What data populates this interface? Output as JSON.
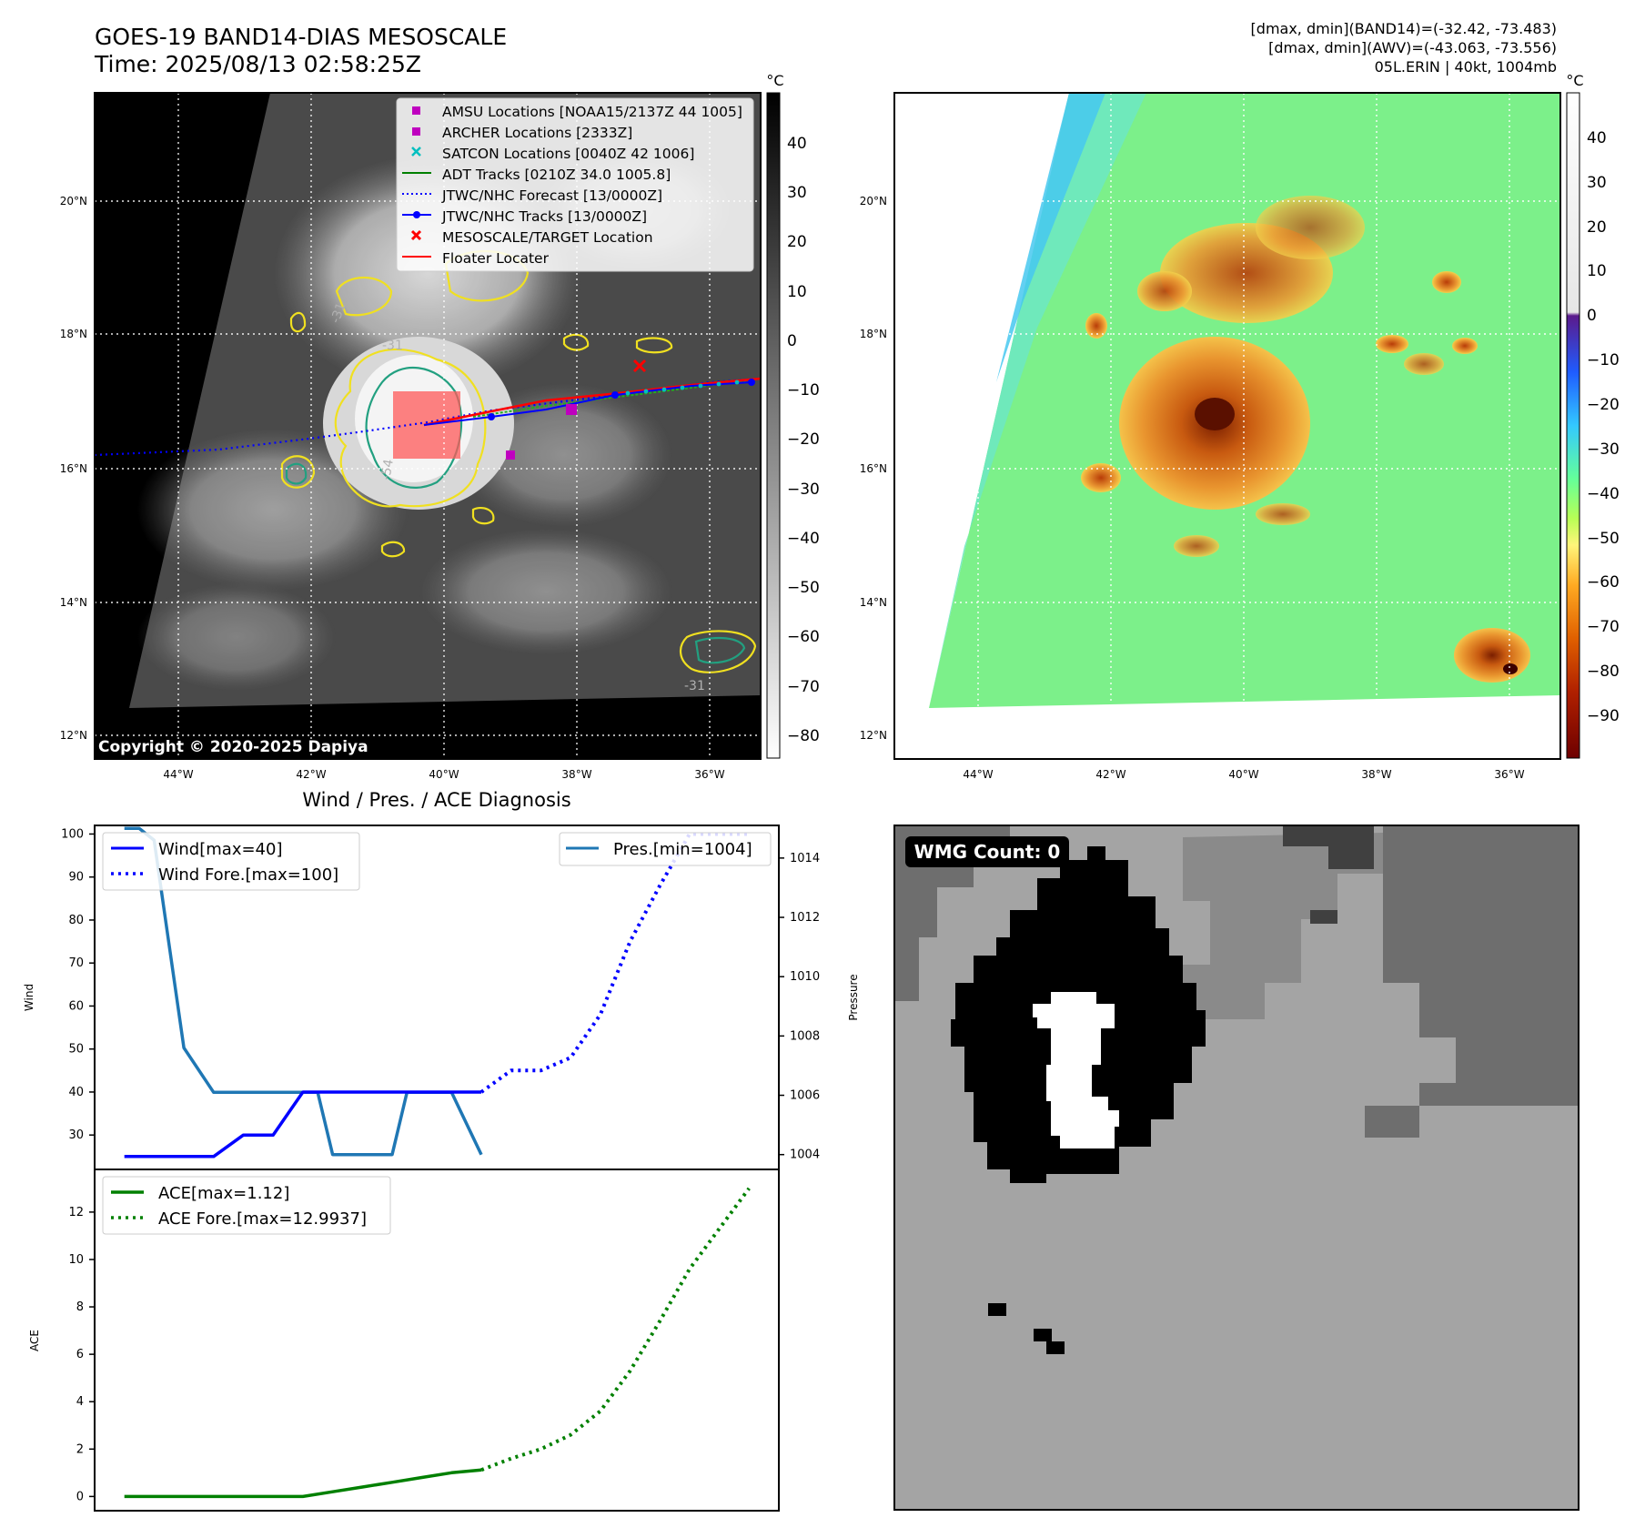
{
  "header": {
    "title": "GOES-19 BAND14-DIAS MESOSCALE",
    "time": "Time: 2025/08/13 02:58:25Z",
    "dmax_band14": "[dmax, dmin](BAND14)=(-32.42, -73.483)",
    "dmax_awv": "[dmax, dmin](AWV)=(-43.063, -73.556)",
    "storm": "05L.ERIN | 40kt, 1004mb"
  },
  "map": {
    "lat_labels": [
      "20°N",
      "18°N",
      "16°N",
      "14°N",
      "12°N"
    ],
    "lon_labels": [
      "44°W",
      "42°W",
      "40°W",
      "38°W",
      "36°W"
    ],
    "copyright": "Copyright © 2020-2025 Dapiya",
    "colorbar_unit": "°C",
    "gray_ticks": [
      "40",
      "30",
      "20",
      "10",
      "0",
      "−10",
      "−20",
      "−30",
      "−40",
      "−50",
      "−60",
      "−70",
      "−80"
    ],
    "color_ticks": [
      "40",
      "30",
      "20",
      "10",
      "0",
      "−10",
      "−20",
      "−30",
      "−40",
      "−50",
      "−60",
      "−70",
      "−80",
      "−90"
    ],
    "contour_labels": [
      "-31",
      "-54",
      "-31",
      "-31"
    ],
    "legend": [
      {
        "label": "AMSU Locations [NOAA15/2137Z 44 1005]",
        "symbol": "square",
        "color": "#bf00bf"
      },
      {
        "label": "ARCHER Locations [2333Z]",
        "symbol": "square",
        "color": "#bf00bf"
      },
      {
        "label": "SATCON Locations [0040Z 42 1006]",
        "symbol": "x",
        "color": "#00bfbf"
      },
      {
        "label": "ADT Tracks [0210Z 34.0 1005.8]",
        "symbol": "line",
        "color": "#008000"
      },
      {
        "label": "JTWC/NHC Forecast [13/0000Z]",
        "symbol": "dotted",
        "color": "#0000ff"
      },
      {
        "label": "JTWC/NHC Tracks [13/0000Z]",
        "symbol": "line-dot",
        "color": "#0000ff"
      },
      {
        "label": "MESOSCALE/TARGET Location",
        "symbol": "x",
        "color": "#ff0000"
      },
      {
        "label": "Floater Locater",
        "symbol": "line",
        "color": "#ff0000"
      }
    ]
  },
  "diagnosis": {
    "title": "Wind / Pres. / ACE Diagnosis",
    "wind_axis_label": "Wind",
    "pressure_axis_label": "Pressure",
    "ace_axis_label": "ACE",
    "wind_legend": "Wind[max=40]",
    "wind_fore_legend": "Wind Fore.[max=100]",
    "pres_legend": "Pres.[min=1004]",
    "ace_legend": "ACE[max=1.12]",
    "ace_fore_legend": "ACE Fore.[max=12.9937]"
  },
  "wmg": {
    "label": "WMG Count: 0"
  },
  "chart_data": [
    {
      "type": "line",
      "title": "Wind / Pres. / ACE Diagnosis",
      "ylabel": "Wind",
      "ylim": [
        22,
        102
      ],
      "yticks": [
        30,
        40,
        50,
        60,
        70,
        80,
        90,
        100
      ],
      "series": [
        {
          "name": "Wind[max=40]",
          "color": "#0000ff",
          "style": "solid",
          "x": [
            0,
            1,
            2,
            3,
            4,
            5,
            6,
            7,
            8,
            9,
            10,
            11,
            12
          ],
          "y": [
            25,
            25,
            25,
            25,
            30,
            30,
            40,
            40,
            40,
            40,
            40,
            40,
            40
          ]
        },
        {
          "name": "Wind Fore.[max=100]",
          "color": "#0000ff",
          "style": "dotted",
          "x": [
            12,
            13,
            14,
            15,
            16,
            17,
            18,
            19,
            20,
            21
          ],
          "y": [
            40,
            45,
            45,
            48,
            58,
            75,
            88,
            100,
            100,
            100
          ]
        }
      ]
    },
    {
      "type": "line",
      "ylabel": "Pressure",
      "ylim": [
        1003.5,
        1015.1
      ],
      "yticks": [
        1004,
        1006,
        1008,
        1010,
        1012,
        1014
      ],
      "series": [
        {
          "name": "Pres.[min=1004]",
          "color": "#1f77b4",
          "style": "solid",
          "x": [
            0,
            0.5,
            1,
            2,
            3,
            4,
            5,
            6,
            6.5,
            7,
            8,
            9,
            9.5,
            10,
            11,
            12
          ],
          "y": [
            1015,
            1015,
            1014.6,
            1007.6,
            1006.1,
            1006.1,
            1006.1,
            1006.1,
            1006.1,
            1004,
            1004,
            1004,
            1006.1,
            1006.1,
            1006.1,
            1004
          ]
        }
      ]
    },
    {
      "type": "line",
      "ylabel": "ACE",
      "ylim": [
        -0.6,
        13.8
      ],
      "yticks": [
        0,
        2,
        4,
        6,
        8,
        10,
        12
      ],
      "series": [
        {
          "name": "ACE[max=1.12]",
          "color": "#008000",
          "style": "solid",
          "x": [
            0,
            1,
            2,
            3,
            4,
            5,
            6,
            7,
            8,
            9,
            10,
            11,
            12
          ],
          "y": [
            0,
            0,
            0,
            0,
            0,
            0,
            0,
            0.2,
            0.4,
            0.6,
            0.8,
            1.0,
            1.12
          ]
        },
        {
          "name": "ACE Fore.[max=12.9937]",
          "color": "#008000",
          "style": "dotted",
          "x": [
            12,
            13,
            14,
            15,
            16,
            17,
            18,
            19,
            20,
            21
          ],
          "y": [
            1.12,
            1.6,
            2.0,
            2.6,
            3.6,
            5.3,
            7.4,
            9.6,
            11.3,
            13.0
          ]
        }
      ]
    }
  ]
}
